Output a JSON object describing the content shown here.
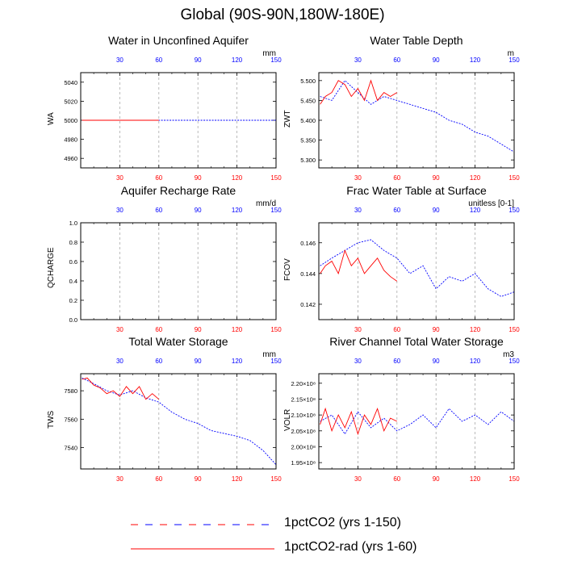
{
  "title": "Global (90S-90N,180W-180E)",
  "colors": {
    "exp1": "#0000ff",
    "exp2": "#ff0000",
    "grid": "#aaaaaa",
    "axis": "#000000"
  },
  "legend": [
    {
      "label": "1pctCO2 (yrs 1-150)",
      "style": "dashed"
    },
    {
      "label": "1pctCO2-rad (yrs 1-60)",
      "style": "solid"
    }
  ],
  "chart_data": [
    {
      "type": "line",
      "title": "Water in Unconfined Aquifer",
      "ylabel": "WA",
      "units": "mm",
      "xlim": [
        0,
        150
      ],
      "ylim": [
        4950,
        5050
      ],
      "yticks": [
        4960,
        4980,
        5000,
        5020,
        5040
      ],
      "ytick_labels": [
        "4960",
        "4980",
        "5000",
        "5020",
        "5040"
      ],
      "xticks_top": [
        "30",
        "60",
        "90",
        "120",
        "150"
      ],
      "xticks_bottom": [
        "30",
        "60",
        "90",
        "120",
        "150"
      ],
      "series": [
        {
          "name": "1pctCO2 (yrs 1-150)",
          "x": [
            1,
            150
          ],
          "values": [
            5000,
            5000
          ]
        },
        {
          "name": "1pctCO2-rad (yrs 1-60)",
          "x": [
            1,
            60
          ],
          "values": [
            5000,
            5000
          ]
        }
      ]
    },
    {
      "type": "line",
      "title": "Water Table Depth",
      "ylabel": "ZWT",
      "units": "m",
      "xlim": [
        0,
        150
      ],
      "ylim": [
        5.28,
        5.52
      ],
      "yticks": [
        5.3,
        5.35,
        5.4,
        5.45,
        5.5
      ],
      "ytick_labels": [
        "5.300",
        "5.350",
        "5.400",
        "5.450",
        "5.500"
      ],
      "xticks_top": [
        "30",
        "60",
        "90",
        "120",
        "150"
      ],
      "xticks_bottom": [
        "30",
        "60",
        "90",
        "120",
        "150"
      ],
      "series": [
        {
          "name": "1pctCO2 (yrs 1-150)",
          "x": [
            1,
            10,
            20,
            30,
            40,
            50,
            60,
            70,
            80,
            90,
            100,
            110,
            120,
            130,
            140,
            150
          ],
          "values": [
            5.46,
            5.45,
            5.5,
            5.47,
            5.44,
            5.46,
            5.45,
            5.44,
            5.43,
            5.42,
            5.4,
            5.39,
            5.37,
            5.36,
            5.34,
            5.32
          ]
        },
        {
          "name": "1pctCO2-rad (yrs 1-60)",
          "x": [
            1,
            5,
            10,
            15,
            20,
            25,
            30,
            35,
            40,
            45,
            50,
            55,
            60
          ],
          "values": [
            5.44,
            5.46,
            5.47,
            5.5,
            5.49,
            5.46,
            5.48,
            5.45,
            5.5,
            5.45,
            5.47,
            5.46,
            5.47
          ]
        }
      ]
    },
    {
      "type": "line",
      "title": "Aquifer Recharge Rate",
      "ylabel": "QCHARGE",
      "units": "mm/d",
      "xlim": [
        0,
        150
      ],
      "ylim": [
        0,
        1
      ],
      "yticks": [
        0,
        0.2,
        0.4,
        0.6,
        0.8,
        1.0
      ],
      "ytick_labels": [
        "0.0",
        "0.2",
        "0.4",
        "0.6",
        "0.8",
        "1.0"
      ],
      "xticks_top": [
        "30",
        "60",
        "90",
        "120",
        "150"
      ],
      "xticks_bottom": [
        "30",
        "60",
        "90",
        "120",
        "150"
      ],
      "series": []
    },
    {
      "type": "line",
      "title": "Frac Water Table at Surface",
      "ylabel": "FCOV",
      "units": "unitless [0-1]",
      "xlim": [
        0,
        150
      ],
      "ylim": [
        0.141,
        0.1473
      ],
      "yticks": [
        0.142,
        0.144,
        0.146
      ],
      "ytick_labels": [
        "0.142",
        "0.144",
        "0.146"
      ],
      "xticks_top": [
        "30",
        "60",
        "90",
        "120",
        "150"
      ],
      "xticks_bottom": [
        "30",
        "60",
        "90",
        "120",
        "150"
      ],
      "series": [
        {
          "name": "1pctCO2 (yrs 1-150)",
          "x": [
            1,
            10,
            20,
            30,
            40,
            50,
            60,
            70,
            80,
            90,
            100,
            110,
            120,
            130,
            140,
            150
          ],
          "values": [
            0.1445,
            0.145,
            0.1455,
            0.146,
            0.1462,
            0.1455,
            0.145,
            0.144,
            0.1445,
            0.143,
            0.1438,
            0.1435,
            0.144,
            0.143,
            0.1425,
            0.1428
          ]
        },
        {
          "name": "1pctCO2-rad (yrs 1-60)",
          "x": [
            1,
            5,
            10,
            15,
            20,
            25,
            30,
            35,
            40,
            45,
            50,
            55,
            60
          ],
          "values": [
            0.144,
            0.1445,
            0.1448,
            0.144,
            0.1455,
            0.1445,
            0.145,
            0.144,
            0.1445,
            0.145,
            0.1442,
            0.1438,
            0.1435
          ]
        }
      ]
    },
    {
      "type": "line",
      "title": "Total Water Storage",
      "ylabel": "TWS",
      "units": "mm",
      "xlim": [
        0,
        150
      ],
      "ylim": [
        7525,
        7592
      ],
      "yticks": [
        7540,
        7560,
        7580
      ],
      "ytick_labels": [
        "7540",
        "7560",
        "7580"
      ],
      "xticks_top": [
        "30",
        "60",
        "90",
        "120",
        "150"
      ],
      "xticks_bottom": [
        "30",
        "60",
        "90",
        "120",
        "150"
      ],
      "series": [
        {
          "name": "1pctCO2 (yrs 1-150)",
          "x": [
            1,
            10,
            20,
            30,
            40,
            50,
            60,
            70,
            80,
            90,
            100,
            110,
            120,
            130,
            140,
            150
          ],
          "values": [
            7589,
            7585,
            7580,
            7577,
            7580,
            7575,
            7572,
            7565,
            7560,
            7557,
            7552,
            7550,
            7548,
            7545,
            7538,
            7528
          ]
        },
        {
          "name": "1pctCO2-rad (yrs 1-60)",
          "x": [
            1,
            5,
            10,
            15,
            20,
            25,
            30,
            35,
            40,
            45,
            50,
            55,
            60
          ],
          "values": [
            7588,
            7589,
            7584,
            7582,
            7578,
            7580,
            7576,
            7583,
            7578,
            7583,
            7574,
            7578,
            7574
          ]
        }
      ]
    },
    {
      "type": "line",
      "title": "River Channel Total Water Storage",
      "ylabel": "VOLR",
      "units": "m3",
      "xlim": [
        0,
        150
      ],
      "ylim": [
        193000000.0,
        223000000.0
      ],
      "yticks": [
        195000000.0,
        200000000.0,
        205000000.0,
        210000000.0,
        215000000.0,
        220000000.0
      ],
      "ytick_labels": [
        "1.95×10⁸",
        "2.00×10⁸",
        "2.05×10⁸",
        "2.10×10⁸",
        "2.15×10⁸",
        "2.20×10⁸"
      ],
      "xticks_top": [
        "30",
        "60",
        "90",
        "120",
        "150"
      ],
      "xticks_bottom": [
        "30",
        "60",
        "90",
        "120",
        "150"
      ],
      "series": [
        {
          "name": "1pctCO2 (yrs 1-150)",
          "x": [
            1,
            10,
            20,
            30,
            40,
            50,
            60,
            70,
            80,
            90,
            100,
            110,
            120,
            130,
            140,
            150
          ],
          "values": [
            208000000.0,
            210000000.0,
            204000000.0,
            211000000.0,
            206000000.0,
            209000000.0,
            205000000.0,
            207000000.0,
            210000000.0,
            206000000.0,
            212000000.0,
            208000000.0,
            210000000.0,
            207000000.0,
            211000000.0,
            208000000.0
          ]
        },
        {
          "name": "1pctCO2-rad (yrs 1-60)",
          "x": [
            1,
            5,
            10,
            15,
            20,
            25,
            30,
            35,
            40,
            45,
            50,
            55,
            60
          ],
          "values": [
            207000000.0,
            212000000.0,
            205000000.0,
            210000000.0,
            206000000.0,
            211000000.0,
            204000000.0,
            210000000.0,
            207000000.0,
            212000000.0,
            205000000.0,
            209000000.0,
            208000000.0
          ]
        }
      ]
    }
  ]
}
